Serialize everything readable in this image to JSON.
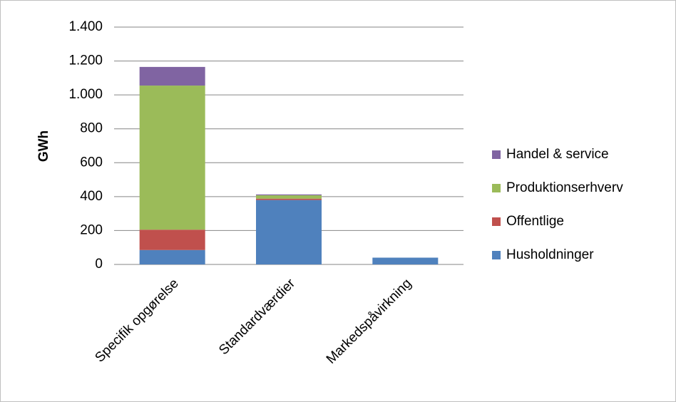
{
  "chart_data": {
    "type": "stacked_bar",
    "y_label": "GWh",
    "categories": [
      "Specifik opgørelse",
      "Standardværdier",
      "Markedspåvirkning"
    ],
    "series": [
      {
        "name": "Husholdninger",
        "color": "#4f81bd",
        "values": [
          85,
          380,
          40
        ]
      },
      {
        "name": "Offentlige",
        "color": "#c0504d",
        "values": [
          120,
          8,
          0
        ]
      },
      {
        "name": "Produktionserhverv",
        "color": "#9bbb59",
        "values": [
          850,
          20,
          0
        ]
      },
      {
        "name": "Handel & service",
        "color": "#8064a2",
        "values": [
          110,
          5,
          0
        ]
      }
    ],
    "ylim": [
      0,
      1400
    ],
    "yticks": [
      0,
      200,
      400,
      600,
      800,
      {
        "value": 1000,
        "label": "1.000"
      },
      {
        "value": 1200,
        "label": "1.200"
      },
      {
        "value": 1400,
        "label": "1.400"
      }
    ],
    "grid": true,
    "legend": "right"
  }
}
